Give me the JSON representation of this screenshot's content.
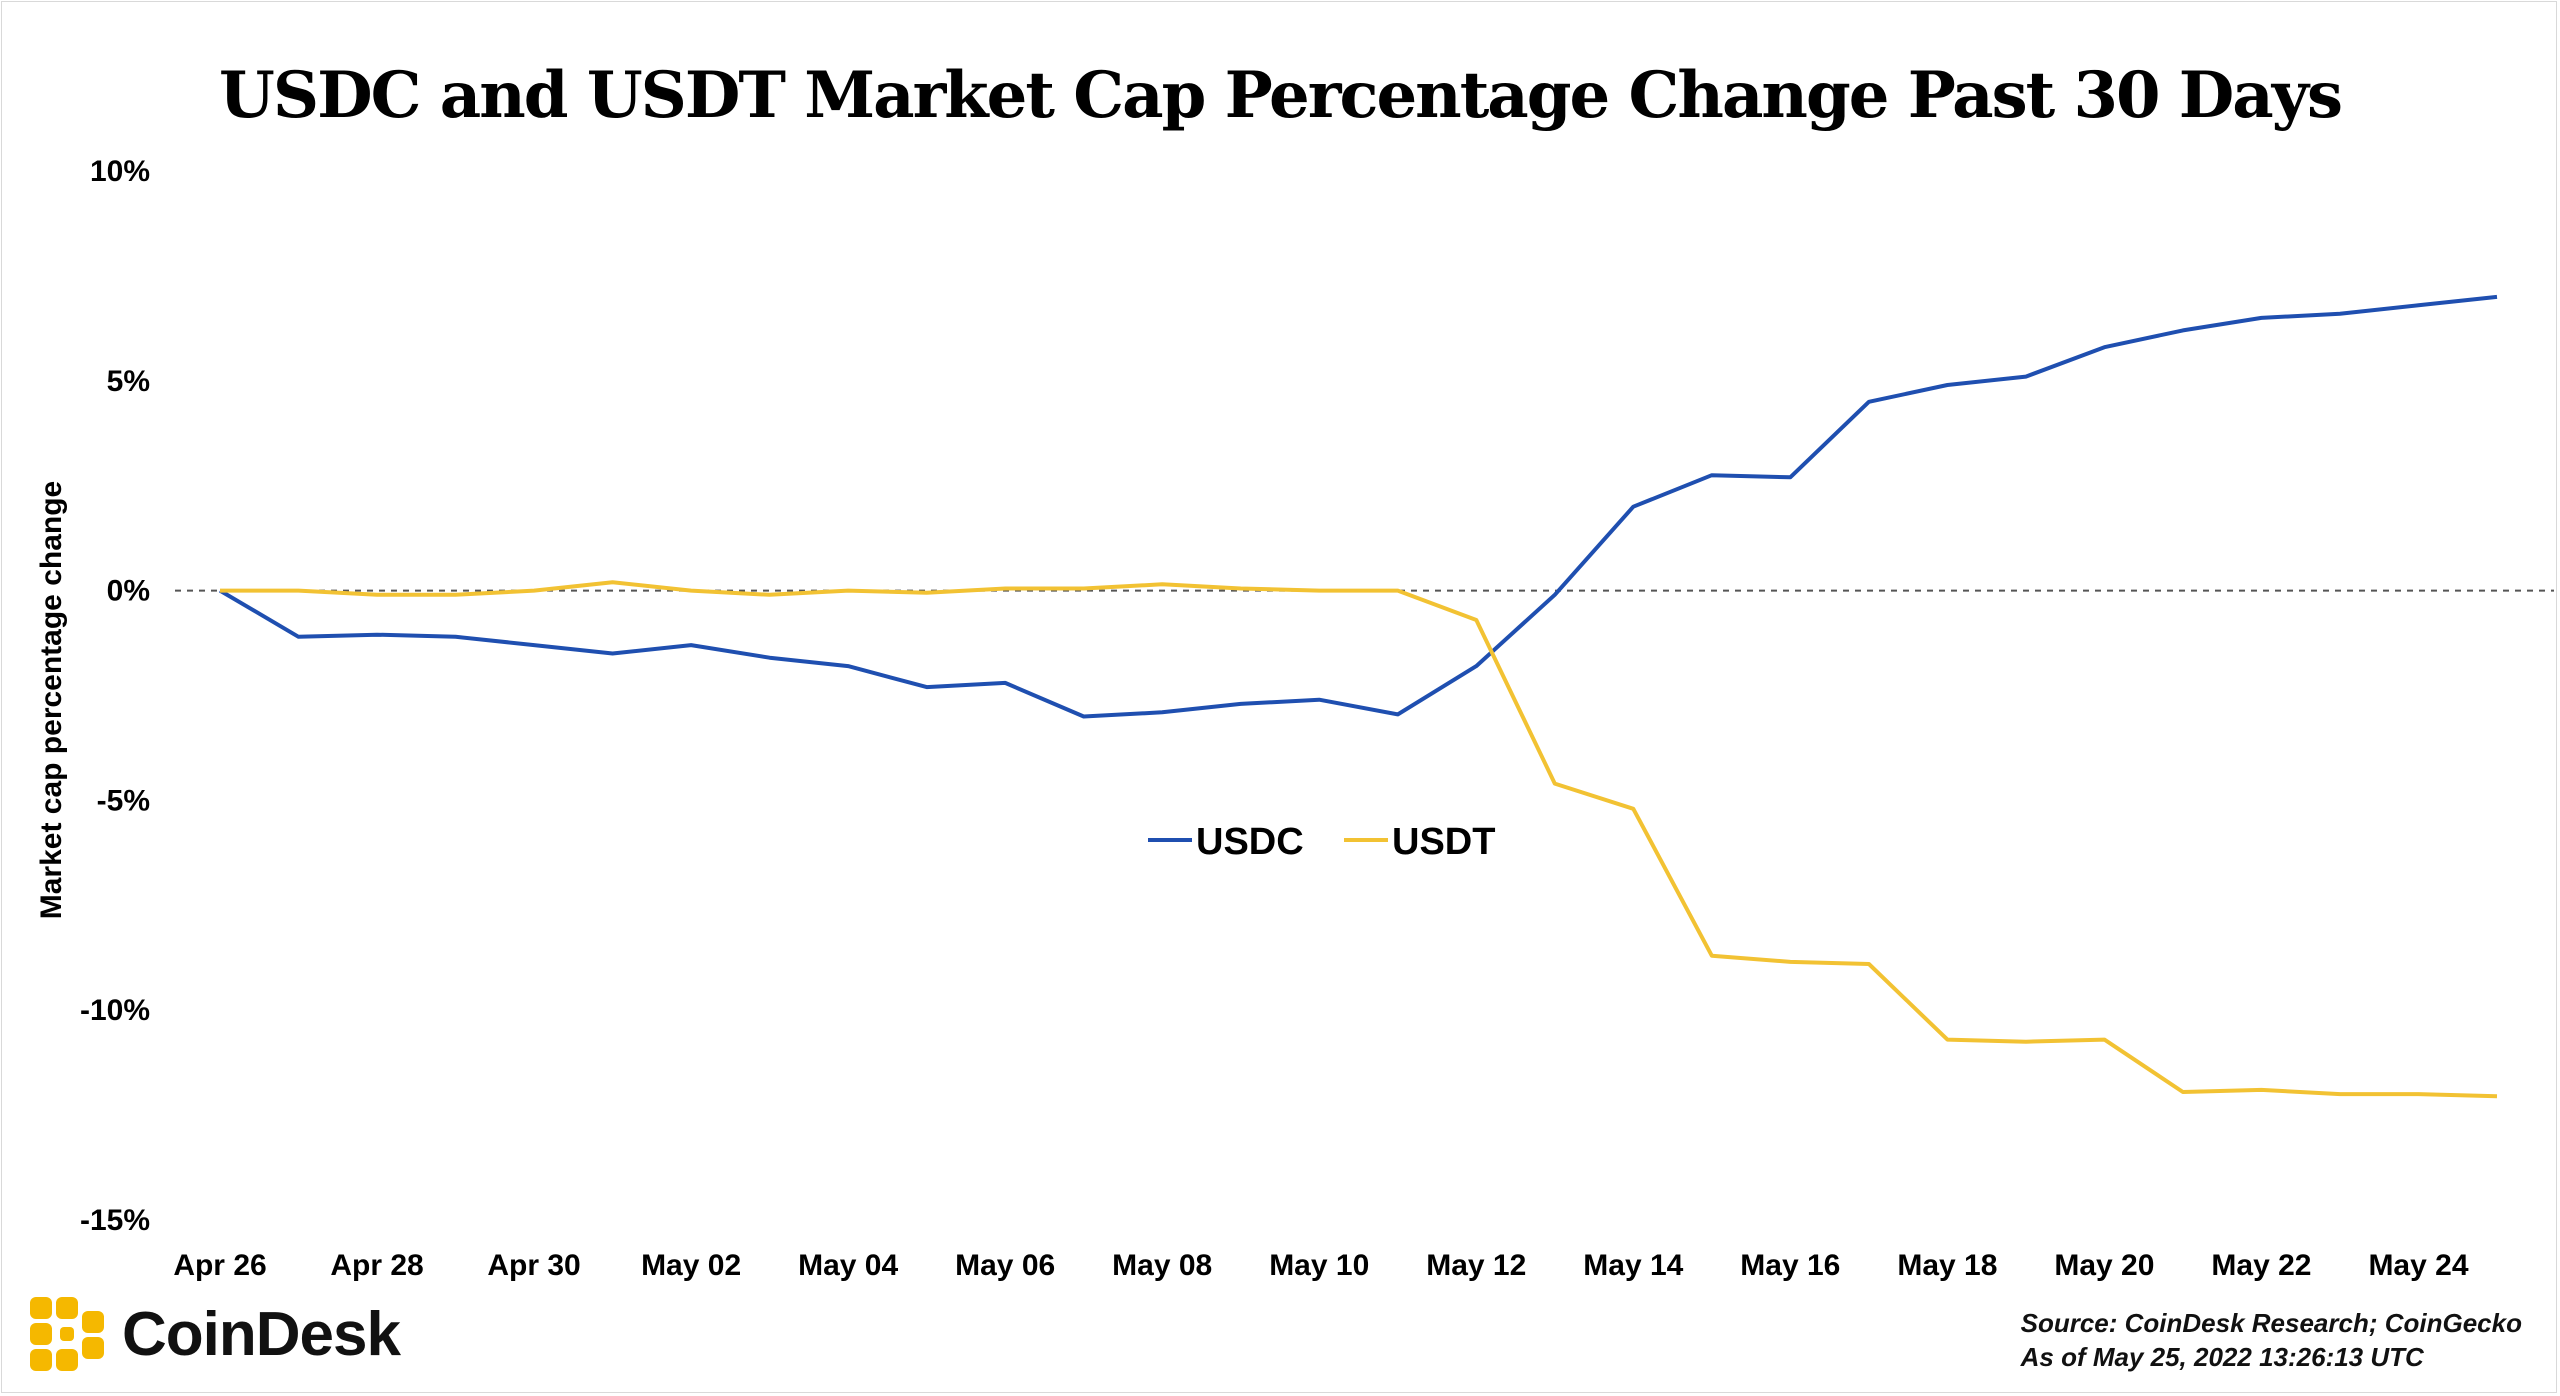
{
  "chart_data": {
    "type": "line",
    "title": "USDC and USDT Market Cap Percentage Change Past 30 Days",
    "xlabel": "",
    "ylabel": "Market cap percentage change",
    "ylim": [
      -15,
      10
    ],
    "y_ticks": [
      10,
      5,
      0,
      -5,
      -10,
      -15
    ],
    "y_tick_labels": [
      "10%",
      "5%",
      "0%",
      "-5%",
      "-10%",
      "-15%"
    ],
    "x": [
      "Apr 26",
      "Apr 27",
      "Apr 28",
      "Apr 29",
      "Apr 30",
      "May 01",
      "May 02",
      "May 03",
      "May 04",
      "May 05",
      "May 06",
      "May 07",
      "May 08",
      "May 09",
      "May 10",
      "May 11",
      "May 12",
      "May 13",
      "May 14",
      "May 15",
      "May 16",
      "May 17",
      "May 18",
      "May 19",
      "May 20",
      "May 21",
      "May 22",
      "May 23",
      "May 24",
      "May 25"
    ],
    "x_tick_labels": [
      "Apr 26",
      "Apr 28",
      "Apr 30",
      "May 02",
      "May 04",
      "May 06",
      "May 08",
      "May 10",
      "May 12",
      "May 14",
      "May 16",
      "May 18",
      "May 20",
      "May 22",
      "May 24"
    ],
    "zero_line": "dashed",
    "grid": false,
    "legend_position": "center",
    "series": [
      {
        "name": "USDC",
        "color": "#1f4fb0",
        "values": [
          0.0,
          -1.1,
          -1.05,
          -1.1,
          -1.3,
          -1.5,
          -1.3,
          -1.6,
          -1.8,
          -2.3,
          -2.2,
          -3.0,
          -2.9,
          -2.7,
          -2.6,
          -2.95,
          -1.8,
          -0.1,
          2.0,
          2.75,
          2.7,
          4.5,
          4.9,
          5.1,
          5.8,
          6.2,
          6.5,
          6.6,
          6.8,
          7.0
        ]
      },
      {
        "name": "USDT",
        "color": "#f2c233",
        "values": [
          0.0,
          0.0,
          -0.1,
          -0.1,
          0.0,
          0.2,
          0.0,
          -0.1,
          0.0,
          -0.05,
          0.05,
          0.05,
          0.15,
          0.05,
          0.0,
          0.0,
          -0.7,
          -4.6,
          -5.2,
          -8.7,
          -8.85,
          -8.9,
          -10.7,
          -10.75,
          -10.7,
          -11.95,
          -11.9,
          -12.0,
          -12.0,
          -12.05
        ]
      }
    ]
  },
  "branding": {
    "logo_text": "CoinDesk",
    "logo_color": "#f5b800"
  },
  "source": {
    "line1": "Source: CoinDesk Research; CoinGecko",
    "line2": "As of May 25, 2022 13:26:13 UTC"
  }
}
